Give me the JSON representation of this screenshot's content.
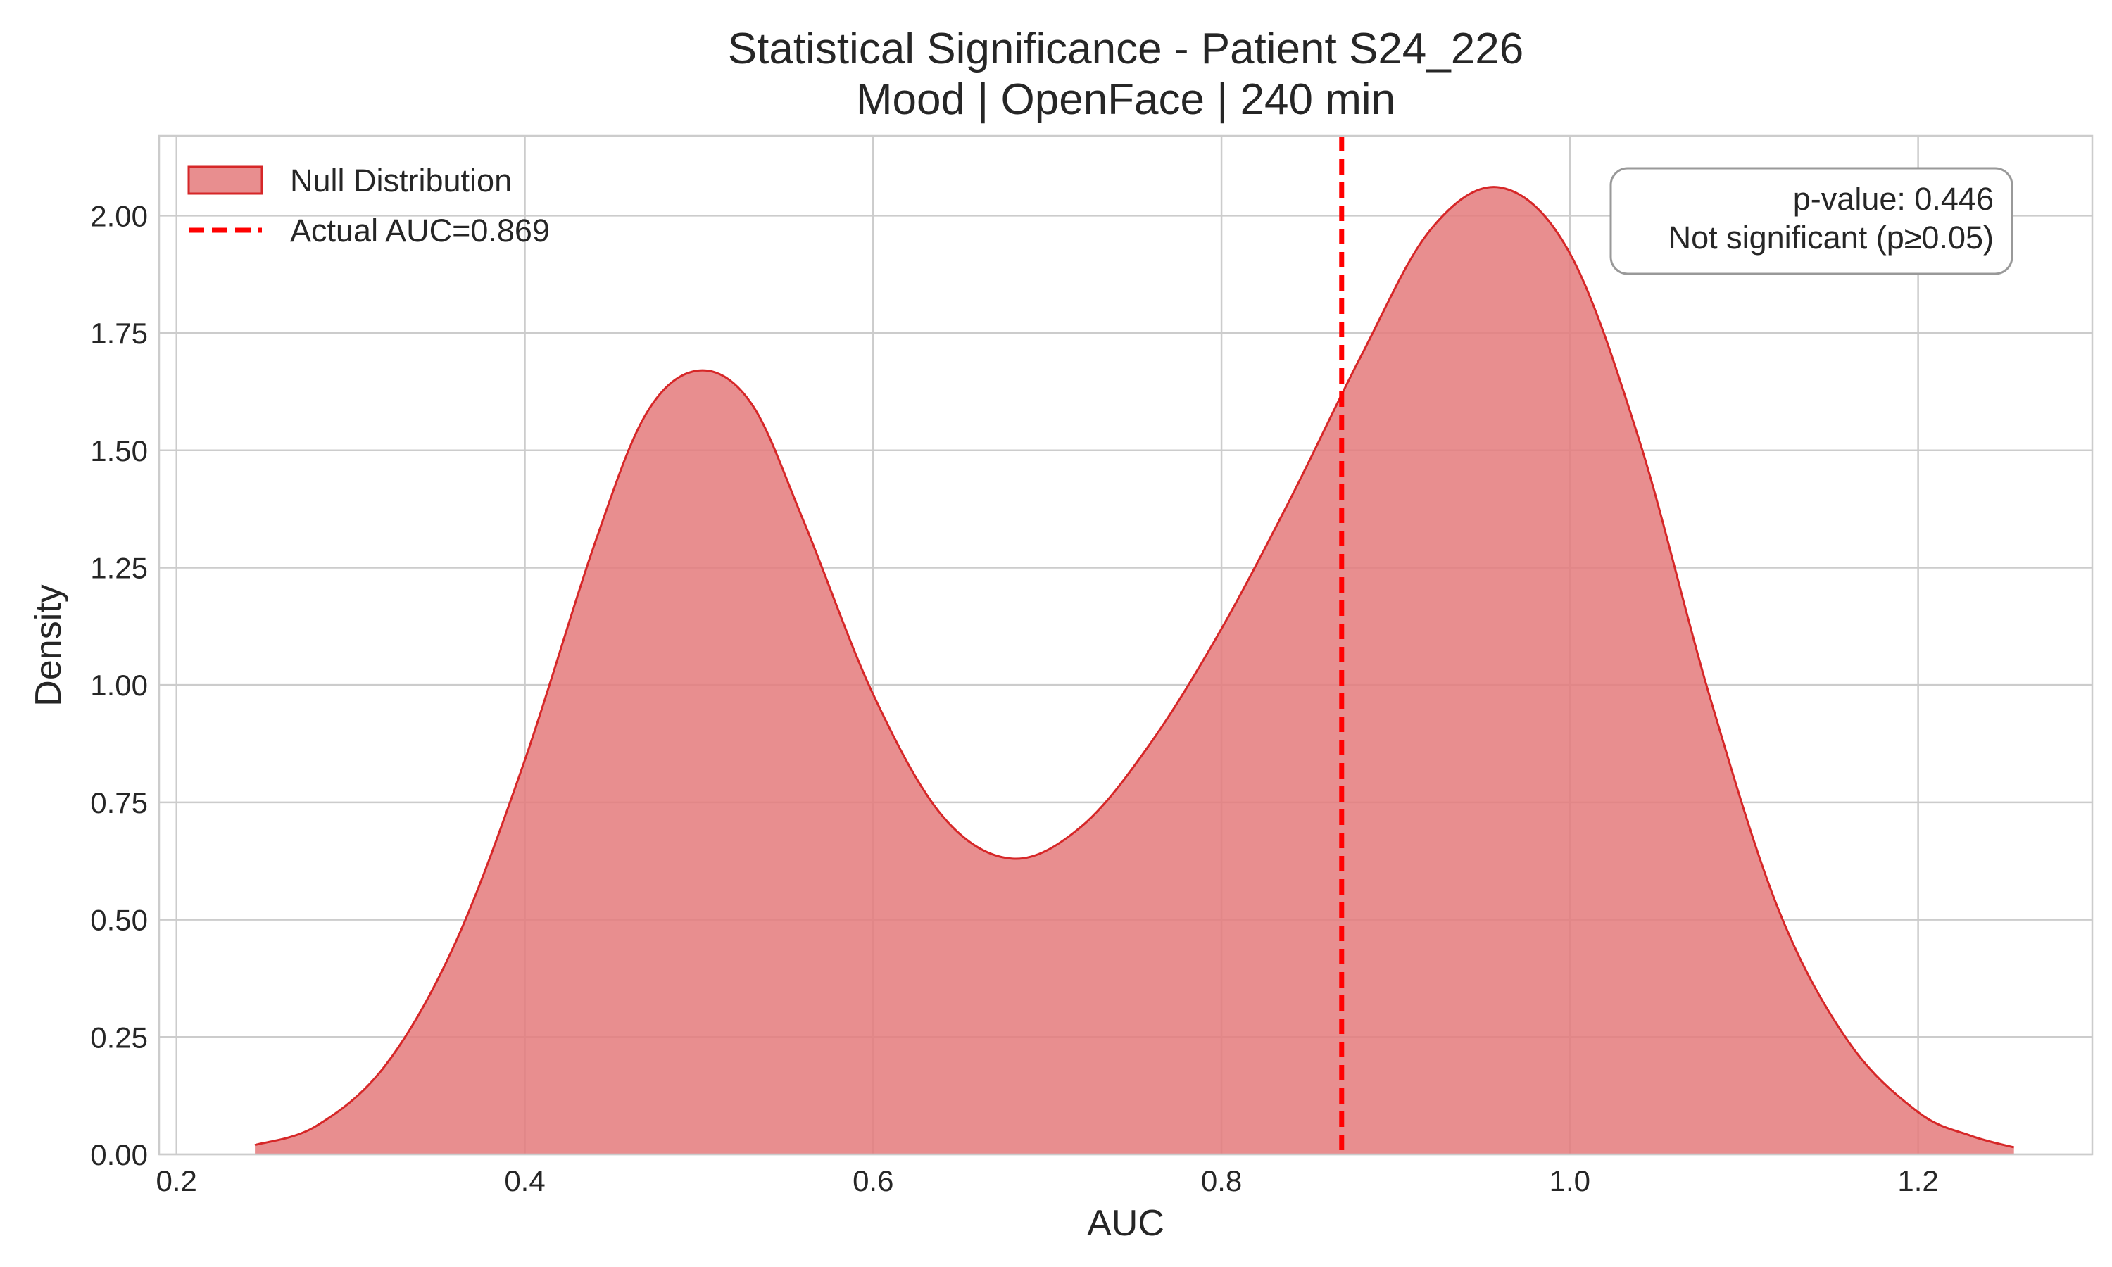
{
  "chart_data": {
    "type": "area",
    "title": "Statistical Significance - Patient S24_226",
    "subtitle": "Mood | OpenFace | 240 min",
    "xlabel": "AUC",
    "ylabel": "Density",
    "xlim": [
      0.19,
      1.3
    ],
    "ylim": [
      0,
      2.17
    ],
    "xticks": [
      {
        "value": 0.2,
        "label": "0.2"
      },
      {
        "value": 0.4,
        "label": "0.4"
      },
      {
        "value": 0.6,
        "label": "0.6"
      },
      {
        "value": 0.8,
        "label": "0.8"
      },
      {
        "value": 1.0,
        "label": "1.0"
      },
      {
        "value": 1.2,
        "label": "1.2"
      }
    ],
    "yticks": [
      {
        "value": 0.0,
        "label": "0.00"
      },
      {
        "value": 0.25,
        "label": "0.25"
      },
      {
        "value": 0.5,
        "label": "0.50"
      },
      {
        "value": 0.75,
        "label": "0.75"
      },
      {
        "value": 1.0,
        "label": "1.00"
      },
      {
        "value": 1.25,
        "label": "1.25"
      },
      {
        "value": 1.5,
        "label": "1.50"
      },
      {
        "value": 1.75,
        "label": "1.75"
      },
      {
        "value": 2.0,
        "label": "2.00"
      }
    ],
    "grid": true,
    "legend_placement": "top-left",
    "series": [
      {
        "name": "Null Distribution",
        "kind": "density",
        "color": "#d62728",
        "fill": "#e47a7b",
        "x": [
          0.245,
          0.28,
          0.32,
          0.36,
          0.4,
          0.44,
          0.47,
          0.5,
          0.53,
          0.56,
          0.6,
          0.64,
          0.68,
          0.72,
          0.76,
          0.8,
          0.84,
          0.88,
          0.92,
          0.96,
          1.0,
          1.04,
          1.08,
          1.12,
          1.16,
          1.2,
          1.23,
          1.255
        ],
        "y": [
          0.02,
          0.06,
          0.19,
          0.45,
          0.84,
          1.3,
          1.58,
          1.67,
          1.6,
          1.35,
          0.98,
          0.72,
          0.63,
          0.7,
          0.88,
          1.12,
          1.4,
          1.7,
          1.97,
          2.06,
          1.92,
          1.52,
          0.98,
          0.52,
          0.24,
          0.09,
          0.04,
          0.015
        ]
      }
    ],
    "reference_line": {
      "name": "Actual AUC=0.869",
      "x": 0.869,
      "color": "#ff0000",
      "style": "dashed"
    },
    "annotation": {
      "lines": [
        "p-value: 0.446",
        "Not significant (p≥0.05)"
      ],
      "placement": "top-right"
    }
  }
}
